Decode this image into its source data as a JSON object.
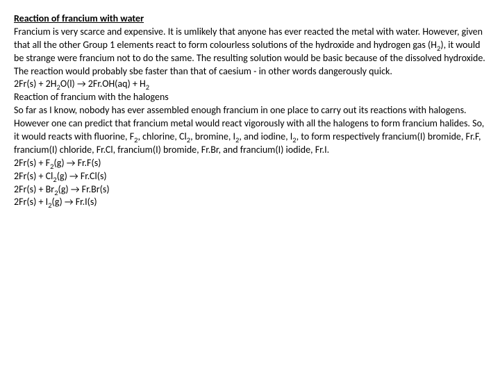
{
  "title": "Reaction of francium with water",
  "para1": "Francium is very scarce and expensive. It is umlikely that anyone has ever reacted the metal with water. However, given that all the other Group 1 elements react to form colourless solutions of the hydroxide and hydrogen gas (H",
  "para1b": "), it would be strange were francium not to do the same. The resulting solution would be basic because of the dissolved hydroxide. The reaction would probably sbe faster than that of caesium - in other words dangerously quick.",
  "eq1a": "2Fr(s) + 2H",
  "eq1b": "O(l) → 2Fr.OH(aq) + H",
  "heading2": "Reaction of francium with the halogens",
  "para2a": "So far as I know, nobody has ever assembled enough francium in one place to carry out its reactions with halogens. However one can predict that francium metal would react vigorously with all the halogens to form francium halides. So, it would reacts with fluorine, F",
  "para2b": ", chlorine, Cl",
  "para2c": ", bromine, I",
  "para2d": ", and iodine, I",
  "para2e": ", to form respectively francium(I) bromide, Fr.F, francium(I) chloride, Fr.Cl, francium(I) bromide, Fr.Br, and francium(I) iodide, Fr.I.",
  "eq2a": "2Fr(s) + F",
  "eq2b": "(g) → Fr.F(s)",
  "eq3a": "2Fr(s) + Cl",
  "eq3b": "(g) → Fr.Cl(s)",
  "eq4a": "2Fr(s) + Br",
  "eq4b": "(g) → Fr.Br(s)",
  "eq5a": "2Fr(s) + I",
  "eq5b": "(g) → Fr.I(s)",
  "sub2": "2"
}
